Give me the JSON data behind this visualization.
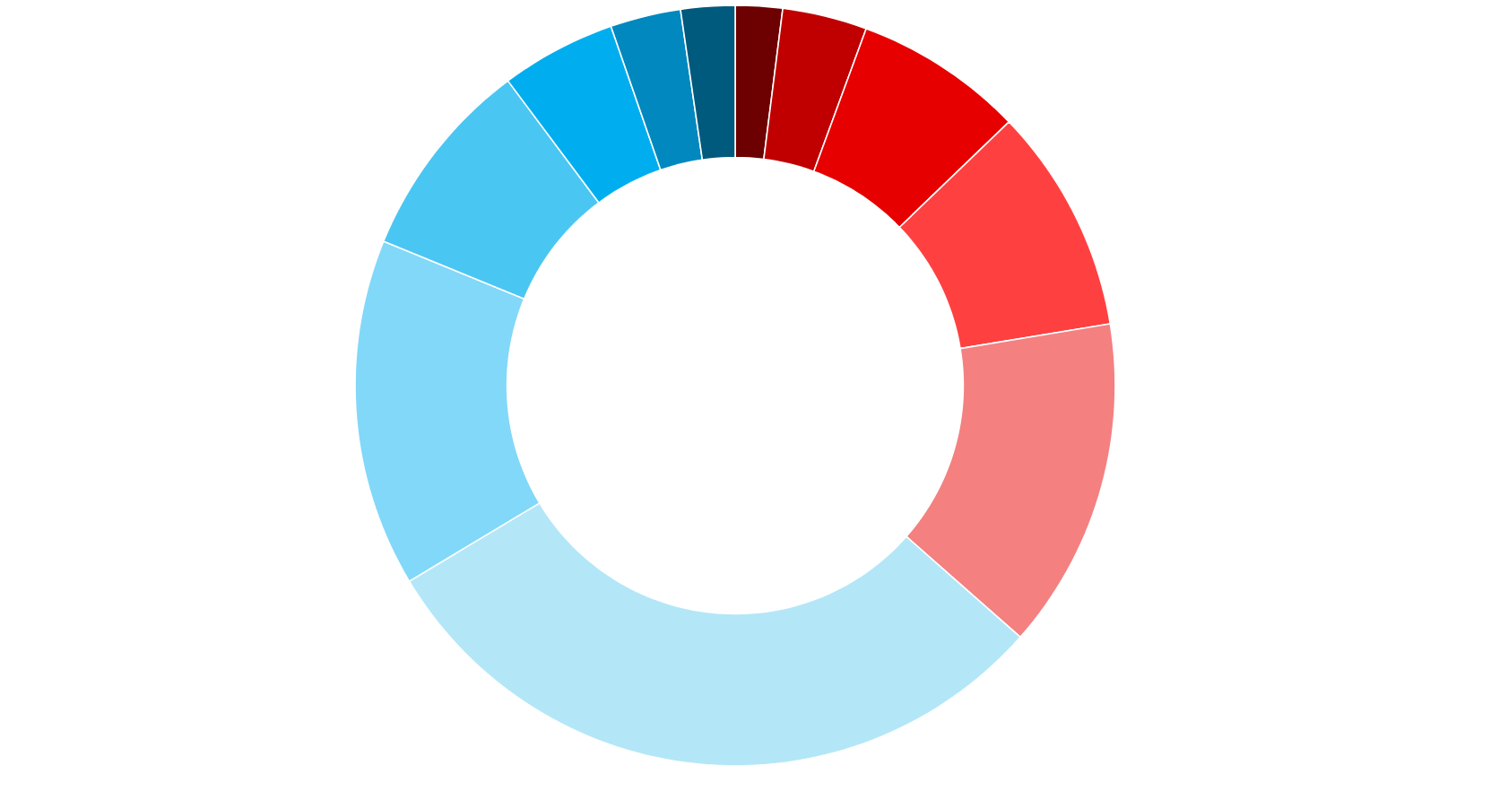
{
  "chart_data": {
    "type": "donut",
    "categories": [
      null,
      null,
      null,
      null,
      null,
      null,
      null,
      null,
      null,
      null,
      null
    ],
    "values": [
      2.0,
      3.6,
      7.2,
      9.6,
      14.1,
      29.9,
      14.8,
      8.6,
      4.9,
      3.0,
      2.3
    ],
    "colors": [
      "#6d0000",
      "#c00000",
      "#e60000",
      "#ff4040",
      "#f48080",
      "#b3e7f8",
      "#82d8f8",
      "#4ac6f3",
      "#00aeef",
      "#0088bf",
      "#005a7d"
    ]
  }
}
